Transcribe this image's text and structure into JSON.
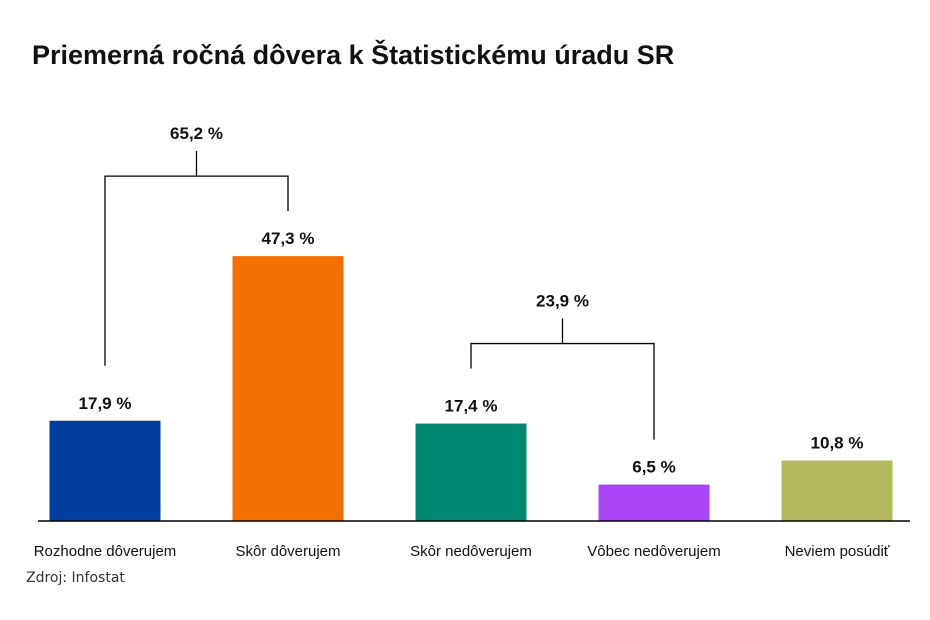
{
  "chart_data": {
    "type": "bar",
    "title": "Priemerná ročná dôvera k Štatistickému úradu SR",
    "categories": [
      "Rozhodne dôverujem",
      "Skôr dôverujem",
      "Skôr nedôverujem",
      "Vôbec nedôverujem",
      "Neviem posúdiť"
    ],
    "values": [
      17.9,
      47.3,
      17.4,
      6.5,
      10.8
    ],
    "value_labels": [
      "17,9 %",
      "47,3 %",
      "17,4 %",
      "6,5 %",
      "10,8 %"
    ],
    "colors": [
      "#003d9e",
      "#f27000",
      "#008870",
      "#a845f7",
      "#b3b95f"
    ],
    "ylim": [
      0,
      55
    ],
    "grid": false,
    "legend": "none",
    "groups": [
      {
        "label": "65,2 %",
        "value": 65.2,
        "from": 0,
        "to": 1
      },
      {
        "label": "23,9 %",
        "value": 23.9,
        "from": 2,
        "to": 3
      }
    ],
    "source": "Zdroj: Infostat"
  }
}
